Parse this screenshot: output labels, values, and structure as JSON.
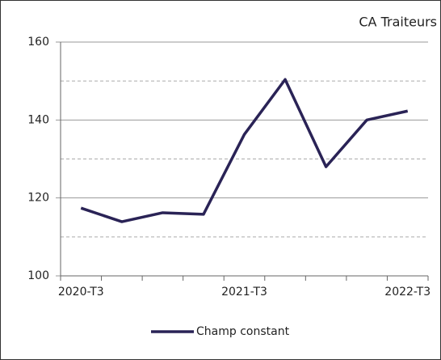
{
  "chart_data": {
    "type": "line",
    "title": "CA Traiteurs",
    "categories": [
      "2020-T3",
      null,
      null,
      null,
      "2021-T3",
      null,
      null,
      null,
      "2022-T3"
    ],
    "series": [
      {
        "name": "Champ constant",
        "color": "#2a2356",
        "values": [
          117.4,
          113.9,
          116.2,
          115.8,
          136.3,
          150.4,
          128.0,
          140.0,
          142.3
        ]
      }
    ],
    "ylim": [
      100,
      160
    ],
    "yticks": [
      100,
      120,
      140,
      160
    ],
    "minor_yticks": [
      110,
      130,
      150
    ],
    "grid": true
  }
}
